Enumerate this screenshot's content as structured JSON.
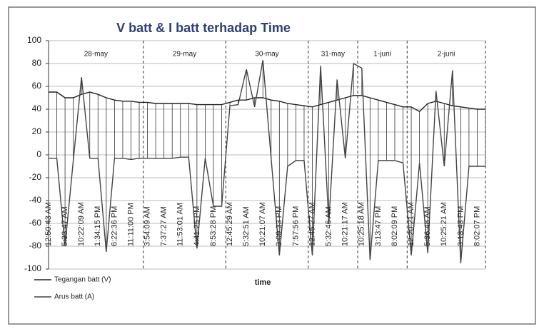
{
  "chart_data": {
    "type": "line",
    "title": "V batt & I batt terhadap Time",
    "x_label": "time",
    "categories": [
      "12:50:43 AM",
      null,
      "5:33:47 AM",
      null,
      "10:22:09 AM",
      null,
      "1:34:15 PM",
      null,
      "6:22:36 PM",
      null,
      "11:11:00 PM",
      null,
      "3:54:09 AM",
      null,
      "7:37:27 AM",
      null,
      "11:53:01 AM",
      null,
      "4:41:25 PM",
      null,
      "8:53:28 PM",
      null,
      "12:45:29 AM",
      null,
      "5:32:51 AM",
      null,
      "10:21:07 AM",
      null,
      "3:09:33 PM",
      null,
      "7:57:56 PM",
      null,
      "12:45:27 AM",
      null,
      "5:32:46 AM",
      null,
      "10:21:17 AM",
      null,
      "10:25:18 AM",
      null,
      "3:13:47 PM",
      null,
      "8:02:09 PM",
      null,
      "12:20:21 AM",
      null,
      "5:36:48 AM",
      null,
      "10:25:21 AM",
      null,
      "3:13:43 PM",
      null,
      "8:02:07 PM",
      null
    ],
    "series": [
      {
        "name": "Tegangan batt (V)",
        "color": "#222222",
        "values": [
          55,
          55,
          50,
          50,
          53,
          55,
          53,
          50,
          48,
          47,
          47,
          46,
          46,
          45,
          45,
          45,
          45,
          45,
          44,
          44,
          44,
          44,
          46,
          48,
          48,
          50,
          50,
          48,
          47,
          45,
          44,
          43,
          42,
          44,
          46,
          48,
          50,
          52,
          52,
          50,
          48,
          46,
          44,
          42,
          42,
          38,
          45,
          47,
          45,
          43,
          42,
          41,
          40,
          40
        ]
      },
      {
        "name": "Arus batt (A)",
        "color": "#444444",
        "values": [
          -3,
          -3,
          -80,
          -5,
          68,
          -3,
          -3,
          -85,
          -3,
          -3,
          -4,
          -3,
          -3,
          -3,
          -3,
          -3,
          -2,
          -2,
          -82,
          -3,
          -45,
          -45,
          43,
          44,
          75,
          42,
          83,
          -3,
          -88,
          -10,
          -5,
          -5,
          -88,
          78,
          -60,
          66,
          -3,
          80,
          76,
          -92,
          -5,
          -5,
          -5,
          -7,
          -88,
          -7,
          -86,
          56,
          -10,
          74,
          -95,
          -10,
          -10,
          -10
        ]
      }
    ],
    "day_groups": [
      {
        "label": "28-may",
        "start": 0,
        "end": 11
      },
      {
        "label": "29-may",
        "start": 12,
        "end": 21
      },
      {
        "label": "30-may",
        "start": 22,
        "end": 31
      },
      {
        "label": "31-may",
        "start": 32,
        "end": 37
      },
      {
        "label": "1-juni",
        "start": 38,
        "end": 43
      },
      {
        "label": "2-juni",
        "start": 44,
        "end": 53
      }
    ],
    "ylim": [
      -100,
      100
    ],
    "yticks": [
      -100,
      -80,
      -60,
      -40,
      -20,
      0,
      20,
      40,
      60,
      80,
      100
    ],
    "grid": true,
    "high_low_lines": true,
    "legend": "bottom-left"
  }
}
